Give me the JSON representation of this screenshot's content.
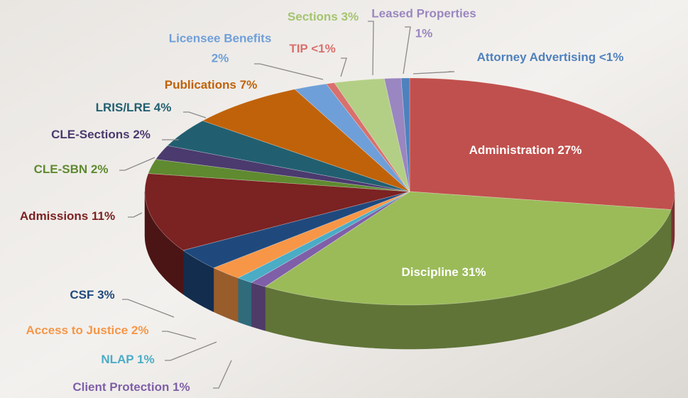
{
  "chart_data": {
    "type": "pie",
    "categories": [
      "Administration",
      "Discipline",
      "Client Protection",
      "NLAP",
      "Access to Justice",
      "CSF",
      "Admissions",
      "CLE-SBN",
      "CLE-Sections",
      "LRIS/LRE",
      "Publications",
      "Licensee Benefits",
      "TIP",
      "Sections",
      "Leased Properties",
      "Attorney Advertising"
    ],
    "values": [
      27,
      31,
      1,
      1,
      2,
      3,
      11,
      2,
      2,
      4,
      7,
      2,
      0.5,
      3,
      1,
      0.5
    ],
    "value_labels": [
      "27%",
      "31%",
      "1%",
      "1%",
      "2%",
      "3%",
      "11%",
      "2%",
      "2%",
      "4%",
      "7%",
      "2%",
      "<1%",
      "3%",
      "1%",
      "<1%"
    ],
    "colors": [
      "#c0504d",
      "#9bbb59",
      "#7f5fa8",
      "#4bacc6",
      "#f79646",
      "#1f497d",
      "#7b2222",
      "#5f8a30",
      "#4b3a6e",
      "#215f70",
      "#c0620a",
      "#6f9fd8",
      "#d9706c",
      "#b3cf85",
      "#9a86c0",
      "#4f81bd"
    ]
  }
}
